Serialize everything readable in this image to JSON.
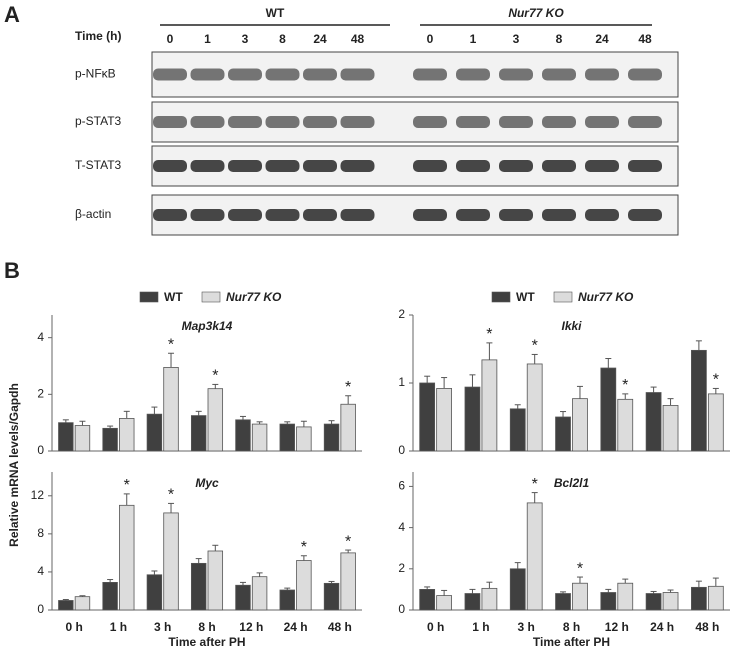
{
  "panel_a": {
    "letter": "A",
    "time_label": "Time (h)",
    "groups": [
      {
        "name": "WT",
        "times": [
          "0",
          "1",
          "3",
          "8",
          "24",
          "48"
        ]
      },
      {
        "name": "Nur77 KO",
        "times": [
          "0",
          "1",
          "3",
          "8",
          "24",
          "48"
        ]
      }
    ],
    "rows": [
      "p-NFκB",
      "p-STAT3",
      "T-STAT3",
      "β-actin"
    ]
  },
  "panel_b": {
    "letter": "B",
    "y_label": "Relative mRNA levels/Gapdh"
  },
  "chart_data": [
    {
      "type": "bar",
      "title": "Map3k14",
      "legend": true,
      "categories": [
        null,
        null,
        null,
        null,
        null,
        null,
        null
      ],
      "ylim": [
        0,
        4.8
      ],
      "yticks": [
        0,
        2,
        4
      ],
      "series": [
        {
          "name": "WT",
          "color": "#404040",
          "values": [
            1.0,
            0.8,
            1.3,
            1.25,
            1.1,
            0.95,
            0.95
          ],
          "errors": [
            0.1,
            0.08,
            0.25,
            0.15,
            0.12,
            0.08,
            0.12
          ]
        },
        {
          "name": "Nur77 KO",
          "color": "#dcdcdc",
          "values": [
            0.9,
            1.15,
            2.95,
            2.2,
            0.95,
            0.85,
            1.65
          ],
          "errors": [
            0.15,
            0.25,
            0.5,
            0.15,
            0.08,
            0.2,
            0.3
          ]
        }
      ],
      "annotations": [
        {
          "text": "*",
          "series": 1,
          "index": 2
        },
        {
          "text": "*",
          "series": 1,
          "index": 3
        },
        {
          "text": "*",
          "series": 1,
          "index": 6
        }
      ]
    },
    {
      "type": "bar",
      "title": "Ikki",
      "legend": true,
      "categories": [
        null,
        null,
        null,
        null,
        null,
        null,
        null
      ],
      "ylim": [
        0,
        2
      ],
      "yticks": [
        0,
        1,
        2
      ],
      "series": [
        {
          "name": "WT",
          "color": "#404040",
          "values": [
            1.0,
            0.94,
            0.62,
            0.5,
            1.22,
            0.86,
            1.48
          ],
          "errors": [
            0.1,
            0.18,
            0.06,
            0.08,
            0.14,
            0.08,
            0.14
          ]
        },
        {
          "name": "Nur77 KO",
          "color": "#dcdcdc",
          "values": [
            0.92,
            1.34,
            1.28,
            0.77,
            0.76,
            0.67,
            0.84
          ],
          "errors": [
            0.16,
            0.25,
            0.14,
            0.18,
            0.08,
            0.1,
            0.08
          ]
        }
      ],
      "annotations": [
        {
          "text": "*",
          "series": 1,
          "index": 1
        },
        {
          "text": "*",
          "series": 1,
          "index": 2
        },
        {
          "text": "*",
          "series": 1,
          "index": 4
        },
        {
          "text": "*",
          "series": 1,
          "index": 6
        }
      ]
    },
    {
      "type": "bar",
      "title": "Myc",
      "x_label": "Time after PH",
      "categories": [
        "0 h",
        "1 h",
        "3 h",
        "8 h",
        "12 h",
        "24 h",
        "48 h"
      ],
      "ylim": [
        0,
        14.5
      ],
      "yticks": [
        0,
        4,
        8,
        12
      ],
      "series": [
        {
          "name": "WT",
          "color": "#404040",
          "values": [
            1.0,
            2.9,
            3.7,
            4.9,
            2.6,
            2.1,
            2.8
          ],
          "errors": [
            0.1,
            0.3,
            0.4,
            0.5,
            0.3,
            0.2,
            0.2
          ]
        },
        {
          "name": "Nur77 KO",
          "color": "#dcdcdc",
          "values": [
            1.4,
            11.0,
            10.2,
            6.2,
            3.5,
            5.2,
            6.0
          ],
          "errors": [
            0.1,
            1.2,
            1.0,
            0.6,
            0.4,
            0.5,
            0.3
          ]
        }
      ],
      "annotations": [
        {
          "text": "*",
          "series": 1,
          "index": 1
        },
        {
          "text": "*",
          "series": 1,
          "index": 2
        },
        {
          "text": "*",
          "series": 1,
          "index": 5
        },
        {
          "text": "*",
          "series": 1,
          "index": 6
        }
      ]
    },
    {
      "type": "bar",
      "title": "Bcl2l1",
      "x_label": "Time after PH",
      "categories": [
        "0 h",
        "1 h",
        "3 h",
        "8 h",
        "12 h",
        "24 h",
        "48 h"
      ],
      "ylim": [
        0,
        6.7
      ],
      "yticks": [
        0,
        2,
        4,
        6
      ],
      "series": [
        {
          "name": "WT",
          "color": "#404040",
          "values": [
            1.0,
            0.8,
            2.0,
            0.8,
            0.85,
            0.8,
            1.1
          ],
          "errors": [
            0.12,
            0.2,
            0.3,
            0.08,
            0.15,
            0.1,
            0.3
          ]
        },
        {
          "name": "Nur77 KO",
          "color": "#dcdcdc",
          "values": [
            0.7,
            1.05,
            5.2,
            1.3,
            1.3,
            0.85,
            1.15
          ],
          "errors": [
            0.25,
            0.3,
            0.5,
            0.3,
            0.2,
            0.12,
            0.4
          ]
        }
      ],
      "annotations": [
        {
          "text": "*",
          "series": 1,
          "index": 2
        },
        {
          "text": "*",
          "series": 1,
          "index": 3
        }
      ]
    }
  ]
}
